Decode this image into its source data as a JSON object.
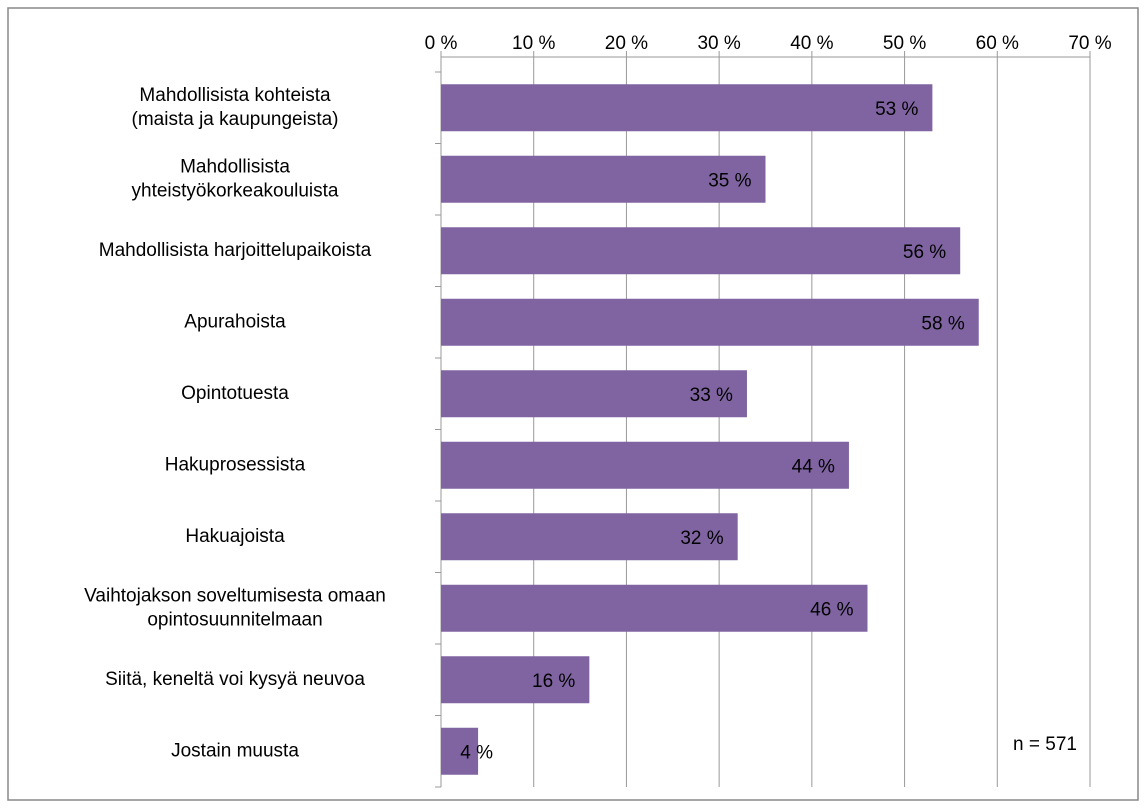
{
  "chart_data": {
    "type": "hbar",
    "categories": [
      "Mahdollisista kohteista\n(maista ja kaupungeista)",
      "Mahdollisista\nyhteistyökorkeakouluista",
      "Mahdollisista harjoittelupaikoista",
      "Apurahoista",
      "Opintotuesta",
      "Hakuprosessista",
      "Hakuajoista",
      "Vaihtojakson soveltumisesta omaan\nopintosuunnitelmaan",
      "Siitä, keneltä voi kysyä neuvoa",
      "Jostain muusta"
    ],
    "values": [
      53,
      35,
      56,
      58,
      33,
      44,
      32,
      46,
      16,
      4
    ],
    "value_labels": [
      "53 %",
      "35 %",
      "56 %",
      "58 %",
      "33 %",
      "44 %",
      "32 %",
      "46 %",
      "16 %",
      "4 %"
    ],
    "color": "#8064a2",
    "xlim": [
      0,
      70
    ],
    "xticks": [
      {
        "value": 0,
        "label": "0 %"
      },
      {
        "value": 10,
        "label": "10 %"
      },
      {
        "value": 20,
        "label": "20 %"
      },
      {
        "value": 30,
        "label": "30 %"
      },
      {
        "value": 40,
        "label": "40 %"
      },
      {
        "value": 50,
        "label": "50 %"
      },
      {
        "value": 60,
        "label": "60 %"
      },
      {
        "value": 70,
        "label": "70 %"
      }
    ],
    "grid": true,
    "annotation": "n = 571"
  }
}
